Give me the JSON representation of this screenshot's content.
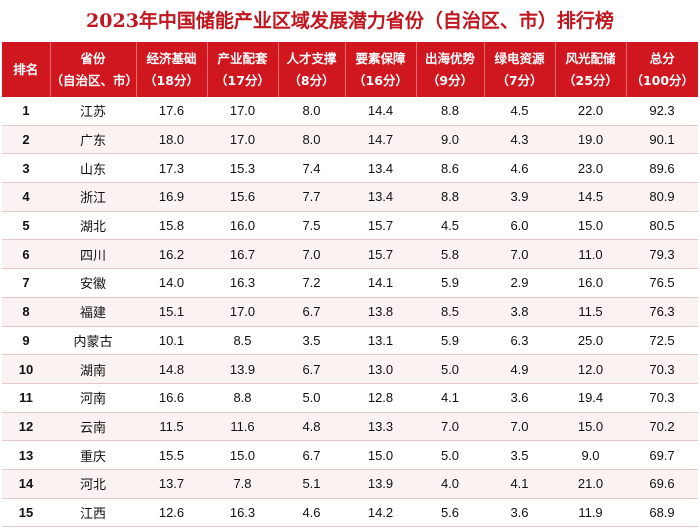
{
  "title": "2023年中国储能产业区域发展潜力省份（自治区、市）排行榜",
  "header": {
    "rank": "排名",
    "province": [
      "省份",
      "（自治区、市）"
    ],
    "columns": [
      [
        "经济基础",
        "（18分）"
      ],
      [
        "产业配套",
        "（17分）"
      ],
      [
        "人才支撑",
        "（8分）"
      ],
      [
        "要素保障",
        "（16分）"
      ],
      [
        "出海优势",
        "（9分）"
      ],
      [
        "绿电资源",
        "（7分）"
      ],
      [
        "风光配储",
        "（25分）"
      ],
      [
        "总分",
        "（100分）"
      ]
    ]
  },
  "rows": [
    {
      "rank": "1",
      "province": "江苏",
      "values": [
        "17.6",
        "17.0",
        "8.0",
        "14.4",
        "8.8",
        "4.5",
        "22.0",
        "92.3"
      ]
    },
    {
      "rank": "2",
      "province": "广东",
      "values": [
        "18.0",
        "17.0",
        "8.0",
        "14.7",
        "9.0",
        "4.3",
        "19.0",
        "90.1"
      ]
    },
    {
      "rank": "3",
      "province": "山东",
      "values": [
        "17.3",
        "15.3",
        "7.4",
        "13.4",
        "8.6",
        "4.6",
        "23.0",
        "89.6"
      ]
    },
    {
      "rank": "4",
      "province": "浙江",
      "values": [
        "16.9",
        "15.6",
        "7.7",
        "13.4",
        "8.8",
        "3.9",
        "14.5",
        "80.9"
      ]
    },
    {
      "rank": "5",
      "province": "湖北",
      "values": [
        "15.8",
        "16.0",
        "7.5",
        "15.7",
        "4.5",
        "6.0",
        "15.0",
        "80.5"
      ]
    },
    {
      "rank": "6",
      "province": "四川",
      "values": [
        "16.2",
        "16.7",
        "7.0",
        "15.7",
        "5.8",
        "7.0",
        "11.0",
        "79.3"
      ]
    },
    {
      "rank": "7",
      "province": "安徽",
      "values": [
        "14.0",
        "16.3",
        "7.2",
        "14.1",
        "5.9",
        "2.9",
        "16.0",
        "76.5"
      ]
    },
    {
      "rank": "8",
      "province": "福建",
      "values": [
        "15.1",
        "17.0",
        "6.7",
        "13.8",
        "8.5",
        "3.8",
        "11.5",
        "76.3"
      ]
    },
    {
      "rank": "9",
      "province": "内蒙古",
      "values": [
        "10.1",
        "8.5",
        "3.5",
        "13.1",
        "5.9",
        "6.3",
        "25.0",
        "72.5"
      ]
    },
    {
      "rank": "10",
      "province": "湖南",
      "values": [
        "14.8",
        "13.9",
        "6.7",
        "13.0",
        "5.0",
        "4.9",
        "12.0",
        "70.3"
      ]
    },
    {
      "rank": "11",
      "province": "河南",
      "values": [
        "16.6",
        "8.8",
        "5.0",
        "12.8",
        "4.1",
        "3.6",
        "19.4",
        "70.3"
      ]
    },
    {
      "rank": "12",
      "province": "云南",
      "values": [
        "11.5",
        "11.6",
        "4.8",
        "13.3",
        "7.0",
        "7.0",
        "15.0",
        "70.2"
      ]
    },
    {
      "rank": "13",
      "province": "重庆",
      "values": [
        "15.5",
        "15.0",
        "6.7",
        "15.0",
        "5.0",
        "3.5",
        "9.0",
        "69.7"
      ]
    },
    {
      "rank": "14",
      "province": "河北",
      "values": [
        "13.7",
        "7.8",
        "5.1",
        "13.9",
        "4.0",
        "4.1",
        "21.0",
        "69.6"
      ]
    },
    {
      "rank": "15",
      "province": "江西",
      "values": [
        "12.6",
        "16.3",
        "4.6",
        "14.2",
        "5.6",
        "3.6",
        "11.9",
        "68.9"
      ]
    }
  ],
  "colors": {
    "accent": "#d0161f",
    "title": "#c0161f",
    "row_alt": "#fbf2f2"
  }
}
